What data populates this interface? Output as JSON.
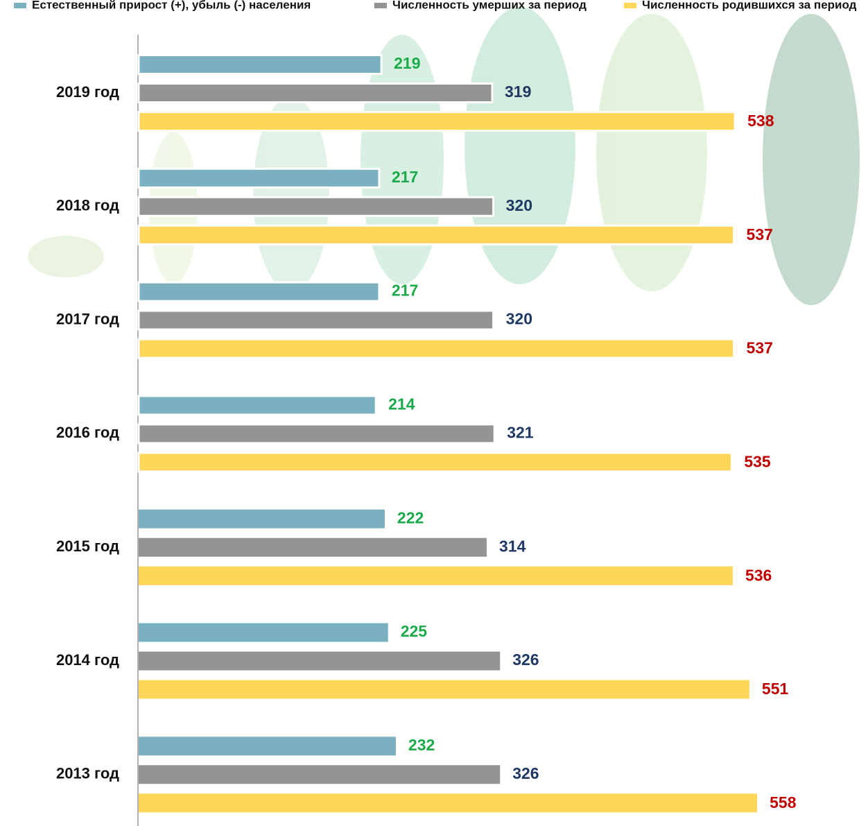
{
  "chart_data": {
    "type": "bar",
    "orientation": "horizontal",
    "categories": [
      "2019 год",
      "2018 год",
      "2017 год",
      "2016 год",
      "2015 год",
      "2014 год",
      "2013 год"
    ],
    "series": [
      {
        "name": "Естественный прирост (+), убыль (-) населения",
        "color": "#7ab0bf",
        "label_color": "#1aaa4a",
        "values": [
          219,
          217,
          217,
          214,
          222,
          225,
          232
        ]
      },
      {
        "name": "Численность умерших за период",
        "color": "#949494",
        "label_color": "#1f3864",
        "values": [
          319,
          320,
          320,
          321,
          314,
          326,
          326
        ]
      },
      {
        "name": "Численность родившихся за период",
        "color": "#ffd657",
        "label_color": "#c00000",
        "values": [
          538,
          537,
          537,
          535,
          536,
          551,
          558
        ]
      }
    ],
    "xlim": [
      0,
      658
    ]
  }
}
